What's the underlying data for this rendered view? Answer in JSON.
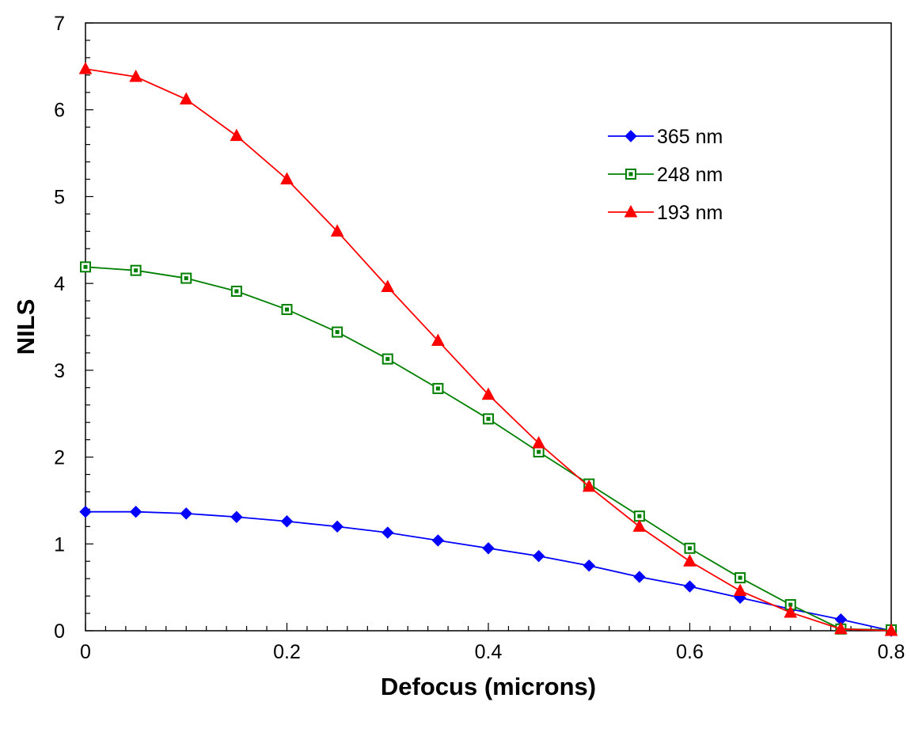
{
  "chart_data": {
    "type": "line",
    "title": "",
    "xlabel": "Defocus (microns)",
    "ylabel": "NILS",
    "xlim": [
      0,
      0.8
    ],
    "ylim": [
      0,
      7
    ],
    "x_ticks": [
      "0",
      "0.2",
      "0.4",
      "0.6",
      "0.8"
    ],
    "y_ticks": [
      "0",
      "1",
      "2",
      "3",
      "4",
      "5",
      "6",
      "7"
    ],
    "grid": false,
    "legend_position": "top-right",
    "x": [
      0,
      0.05,
      0.1,
      0.15,
      0.2,
      0.25,
      0.3,
      0.35,
      0.4,
      0.45,
      0.5,
      0.55,
      0.6,
      0.65,
      0.7,
      0.75,
      0.8
    ],
    "series": [
      {
        "name": "365 nm",
        "color": "#0000ff",
        "marker": "diamond",
        "values": [
          1.37,
          1.37,
          1.35,
          1.31,
          1.26,
          1.2,
          1.13,
          1.04,
          0.95,
          0.86,
          0.75,
          0.62,
          0.51,
          0.38,
          0.25,
          0.13,
          0.0
        ]
      },
      {
        "name": "248 nm",
        "color": "#008000",
        "marker": "square",
        "values": [
          4.19,
          4.15,
          4.06,
          3.91,
          3.7,
          3.44,
          3.13,
          2.79,
          2.44,
          2.06,
          1.69,
          1.32,
          0.95,
          0.61,
          0.3,
          0.02,
          0.01
        ]
      },
      {
        "name": "193 nm",
        "color": "#ff0000",
        "marker": "triangle",
        "values": [
          6.47,
          6.38,
          6.12,
          5.7,
          5.2,
          4.6,
          3.96,
          3.34,
          2.72,
          2.16,
          1.66,
          1.2,
          0.8,
          0.46,
          0.21,
          0.02,
          0.0
        ]
      }
    ]
  }
}
